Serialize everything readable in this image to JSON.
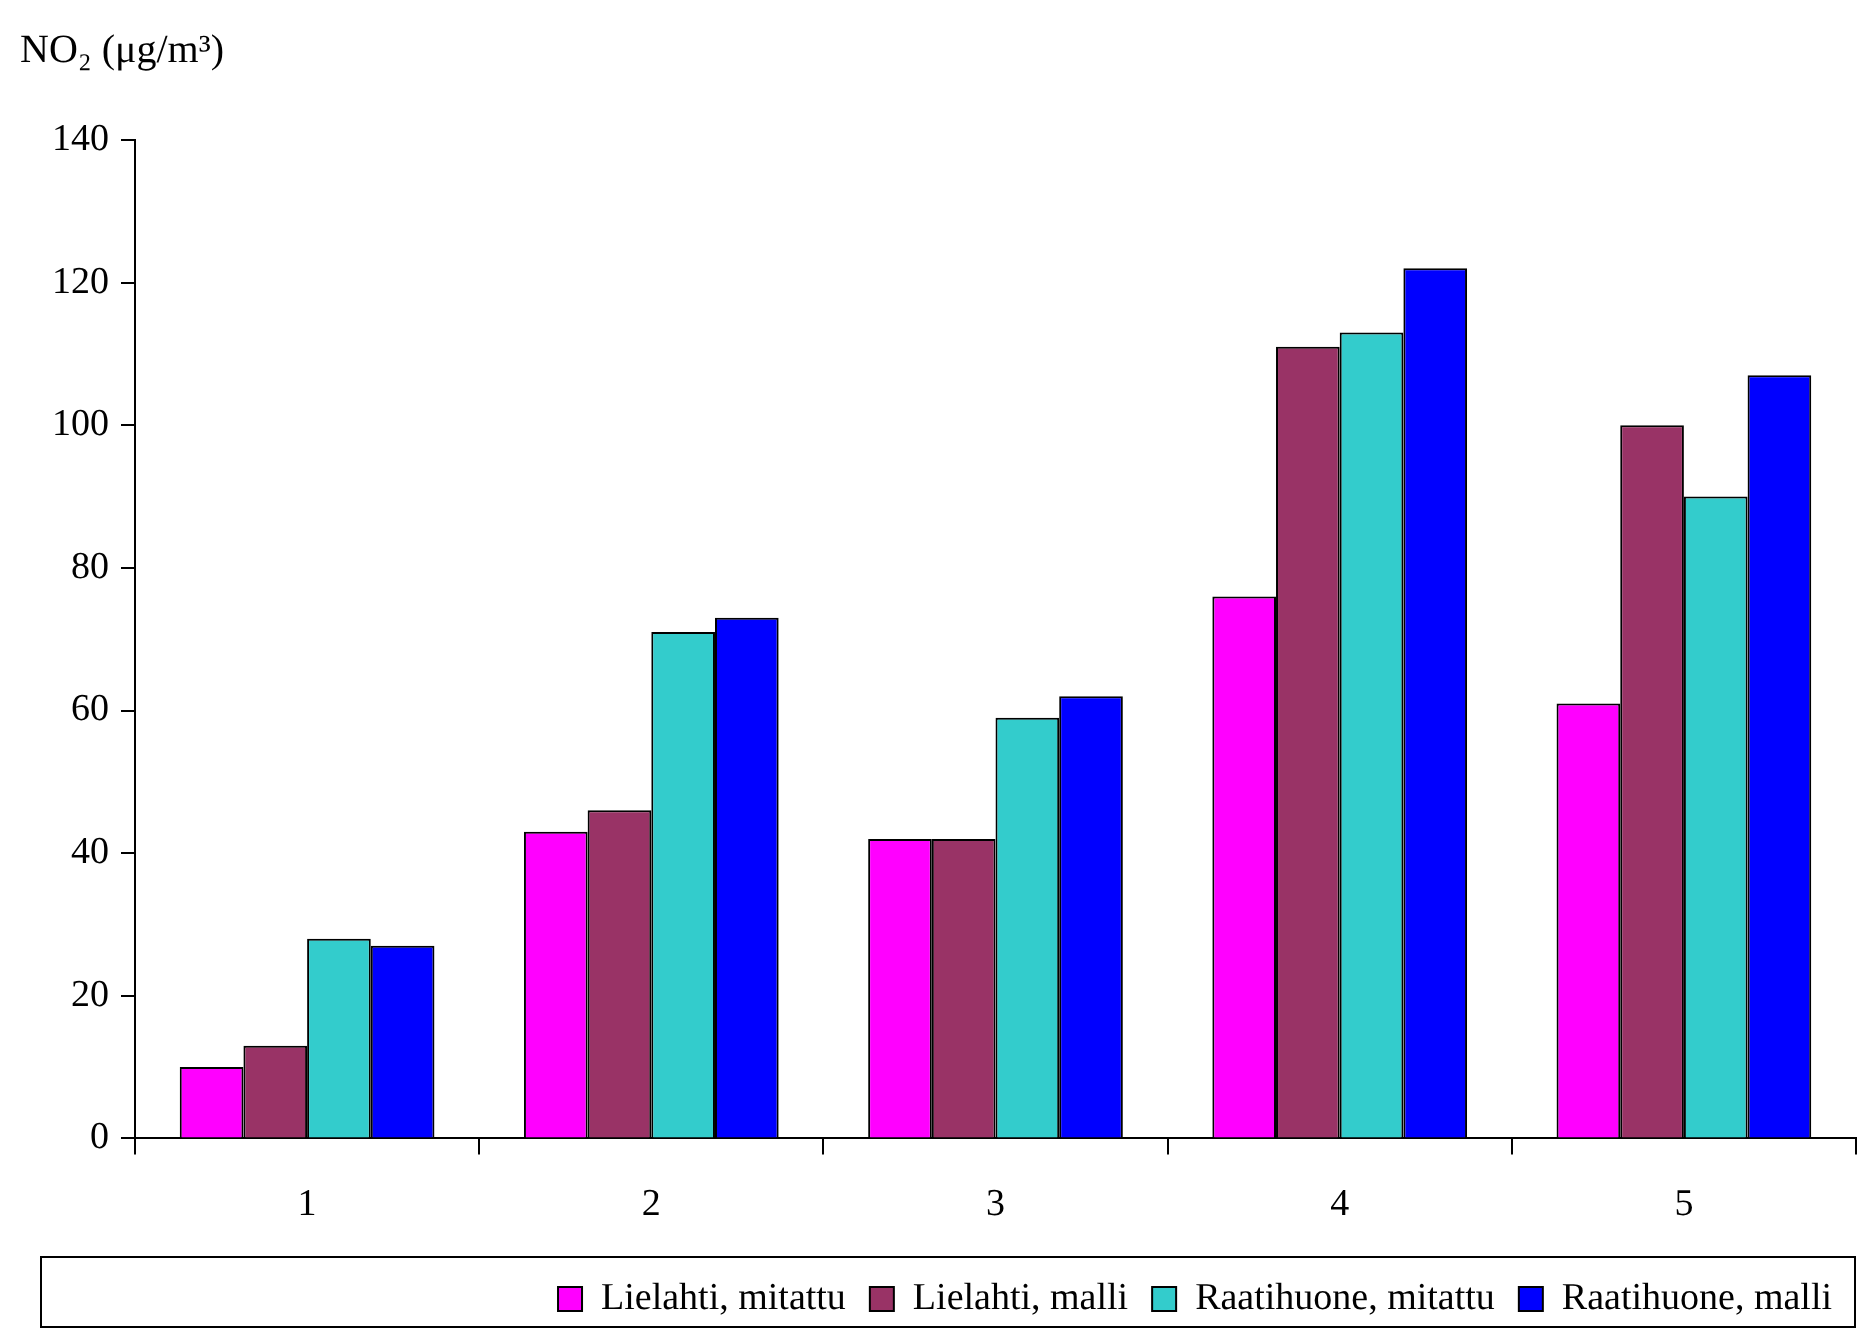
{
  "chart_data": {
    "type": "bar",
    "ylabel": "NO₂ (μg/m³)",
    "categories": [
      "1",
      "2",
      "3",
      "4",
      "5"
    ],
    "series": [
      {
        "name": "Lielahti, mitattu",
        "color": "#ff00ff",
        "values": [
          10,
          43,
          42,
          76,
          61
        ]
      },
      {
        "name": "Lielahti, malli",
        "color": "#993366",
        "values": [
          13,
          46,
          42,
          111,
          100
        ]
      },
      {
        "name": "Raatihuone, mitattu",
        "color": "#33cccc",
        "values": [
          28,
          71,
          59,
          113,
          90
        ]
      },
      {
        "name": "Raatihuone, malli",
        "color": "#0000ff",
        "values": [
          27,
          73,
          62,
          122,
          107
        ]
      }
    ],
    "ylim": [
      0,
      140
    ],
    "yticks": [
      0,
      20,
      40,
      60,
      80,
      100,
      120,
      140
    ],
    "grid": false,
    "legend": "bottom"
  }
}
